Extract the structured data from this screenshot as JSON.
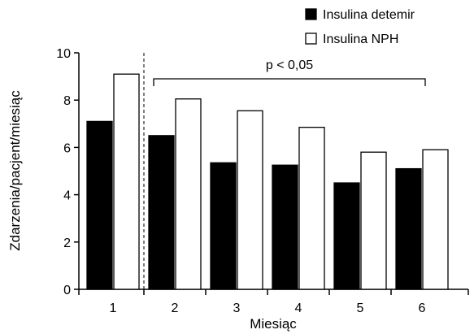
{
  "chart_data": {
    "type": "bar",
    "title": "",
    "xlabel": "Miesiąc",
    "ylabel": "Zdarzenia/pacjent/miesiąc",
    "categories": [
      "1",
      "2",
      "3",
      "4",
      "5",
      "6"
    ],
    "ylim": [
      0,
      10
    ],
    "yticks": [
      "0",
      "2",
      "4",
      "6",
      "8",
      "10"
    ],
    "grid": false,
    "legend_position": "top-right",
    "series": [
      {
        "name": "Insulina detemir",
        "color": "#000000",
        "values": [
          7.1,
          6.5,
          5.35,
          5.25,
          4.5,
          5.1
        ]
      },
      {
        "name": "Insulina NPH",
        "color": "#ffffff",
        "values": [
          9.1,
          8.05,
          7.55,
          6.85,
          5.8,
          5.9
        ]
      }
    ],
    "annotation": {
      "text": "p < 0,05",
      "from_category": "2",
      "to_category": "6",
      "y": 8.9
    },
    "divider_after_category": "1"
  }
}
